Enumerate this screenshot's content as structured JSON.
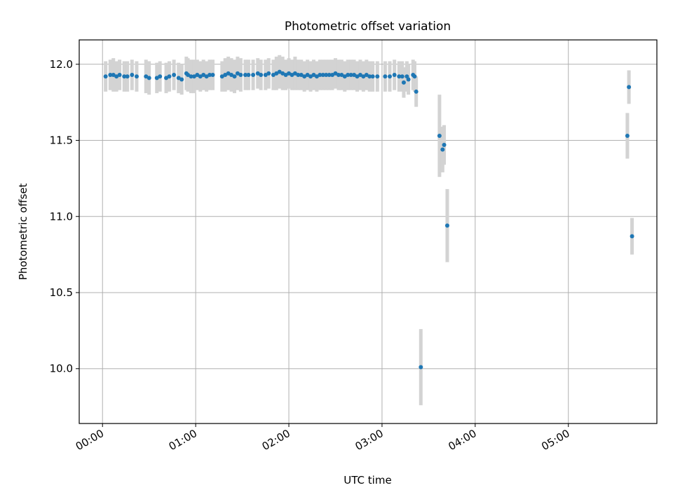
{
  "chart_data": {
    "type": "scatter",
    "title": "Photometric offset variation",
    "xlabel": "UTC time",
    "ylabel": "Photometric offset",
    "xlim": [
      "-00:15",
      "05:57"
    ],
    "ylim": [
      9.64,
      12.16
    ],
    "xticks": [
      "00:00",
      "01:00",
      "02:00",
      "03:00",
      "04:00",
      "05:00"
    ],
    "yticks": [
      10.0,
      10.5,
      11.0,
      11.5,
      12.0
    ],
    "grid": true,
    "colors": {
      "marker": "#1f77b4",
      "errorbar": "#d3d3d3",
      "grid": "#b0b0b0"
    },
    "series": [
      {
        "x_format": "HH:MM",
        "points": [
          {
            "x": "00:02",
            "y": 11.92,
            "err": 0.1
          },
          {
            "x": "00:05",
            "y": 11.93,
            "err": 0.1
          },
          {
            "x": "00:07",
            "y": 11.93,
            "err": 0.11
          },
          {
            "x": "00:09",
            "y": 11.92,
            "err": 0.1
          },
          {
            "x": "00:11",
            "y": 11.93,
            "err": 0.1
          },
          {
            "x": "00:14",
            "y": 11.92,
            "err": 0.1
          },
          {
            "x": "00:16",
            "y": 11.92,
            "err": 0.1
          },
          {
            "x": "00:19",
            "y": 11.93,
            "err": 0.1
          },
          {
            "x": "00:22",
            "y": 11.92,
            "err": 0.1
          },
          {
            "x": "00:28",
            "y": 11.92,
            "err": 0.11
          },
          {
            "x": "00:30",
            "y": 11.91,
            "err": 0.11
          },
          {
            "x": "00:35",
            "y": 11.91,
            "err": 0.1
          },
          {
            "x": "00:37",
            "y": 11.92,
            "err": 0.1
          },
          {
            "x": "00:41",
            "y": 11.91,
            "err": 0.1
          },
          {
            "x": "00:43",
            "y": 11.92,
            "err": 0.1
          },
          {
            "x": "00:46",
            "y": 11.93,
            "err": 0.1
          },
          {
            "x": "00:49",
            "y": 11.91,
            "err": 0.1
          },
          {
            "x": "00:51",
            "y": 11.9,
            "err": 0.1
          },
          {
            "x": "00:54",
            "y": 11.94,
            "err": 0.11
          },
          {
            "x": "00:55",
            "y": 11.93,
            "err": 0.11
          },
          {
            "x": "00:57",
            "y": 11.92,
            "err": 0.11
          },
          {
            "x": "00:59",
            "y": 11.92,
            "err": 0.11
          },
          {
            "x": "01:01",
            "y": 11.93,
            "err": 0.1
          },
          {
            "x": "01:03",
            "y": 11.92,
            "err": 0.1
          },
          {
            "x": "01:05",
            "y": 11.93,
            "err": 0.1
          },
          {
            "x": "01:07",
            "y": 11.92,
            "err": 0.1
          },
          {
            "x": "01:09",
            "y": 11.93,
            "err": 0.1
          },
          {
            "x": "01:11",
            "y": 11.93,
            "err": 0.1
          },
          {
            "x": "01:17",
            "y": 11.92,
            "err": 0.1
          },
          {
            "x": "01:19",
            "y": 11.93,
            "err": 0.11
          },
          {
            "x": "01:21",
            "y": 11.94,
            "err": 0.11
          },
          {
            "x": "01:23",
            "y": 11.93,
            "err": 0.11
          },
          {
            "x": "01:25",
            "y": 11.92,
            "err": 0.11
          },
          {
            "x": "01:27",
            "y": 11.94,
            "err": 0.11
          },
          {
            "x": "01:29",
            "y": 11.93,
            "err": 0.11
          },
          {
            "x": "01:32",
            "y": 11.93,
            "err": 0.1
          },
          {
            "x": "01:34",
            "y": 11.93,
            "err": 0.1
          },
          {
            "x": "01:37",
            "y": 11.93,
            "err": 0.1
          },
          {
            "x": "01:40",
            "y": 11.94,
            "err": 0.1
          },
          {
            "x": "01:42",
            "y": 11.93,
            "err": 0.1
          },
          {
            "x": "01:45",
            "y": 11.93,
            "err": 0.1
          },
          {
            "x": "01:47",
            "y": 11.94,
            "err": 0.1
          },
          {
            "x": "01:50",
            "y": 11.93,
            "err": 0.1
          },
          {
            "x": "01:52",
            "y": 11.94,
            "err": 0.11
          },
          {
            "x": "01:54",
            "y": 11.95,
            "err": 0.11
          },
          {
            "x": "01:56",
            "y": 11.94,
            "err": 0.11
          },
          {
            "x": "01:58",
            "y": 11.93,
            "err": 0.1
          },
          {
            "x": "02:00",
            "y": 11.94,
            "err": 0.1
          },
          {
            "x": "02:02",
            "y": 11.93,
            "err": 0.1
          },
          {
            "x": "02:04",
            "y": 11.94,
            "err": 0.11
          },
          {
            "x": "02:06",
            "y": 11.93,
            "err": 0.1
          },
          {
            "x": "02:08",
            "y": 11.93,
            "err": 0.1
          },
          {
            "x": "02:10",
            "y": 11.92,
            "err": 0.1
          },
          {
            "x": "02:12",
            "y": 11.93,
            "err": 0.1
          },
          {
            "x": "02:14",
            "y": 11.92,
            "err": 0.1
          },
          {
            "x": "02:16",
            "y": 11.93,
            "err": 0.1
          },
          {
            "x": "02:18",
            "y": 11.92,
            "err": 0.1
          },
          {
            "x": "02:20",
            "y": 11.93,
            "err": 0.1
          },
          {
            "x": "02:22",
            "y": 11.93,
            "err": 0.1
          },
          {
            "x": "02:24",
            "y": 11.93,
            "err": 0.1
          },
          {
            "x": "02:26",
            "y": 11.93,
            "err": 0.1
          },
          {
            "x": "02:28",
            "y": 11.93,
            "err": 0.1
          },
          {
            "x": "02:30",
            "y": 11.94,
            "err": 0.1
          },
          {
            "x": "02:32",
            "y": 11.93,
            "err": 0.1
          },
          {
            "x": "02:34",
            "y": 11.93,
            "err": 0.1
          },
          {
            "x": "02:36",
            "y": 11.92,
            "err": 0.1
          },
          {
            "x": "02:38",
            "y": 11.93,
            "err": 0.1
          },
          {
            "x": "02:40",
            "y": 11.93,
            "err": 0.1
          },
          {
            "x": "02:42",
            "y": 11.93,
            "err": 0.1
          },
          {
            "x": "02:44",
            "y": 11.92,
            "err": 0.1
          },
          {
            "x": "02:46",
            "y": 11.93,
            "err": 0.1
          },
          {
            "x": "02:48",
            "y": 11.92,
            "err": 0.1
          },
          {
            "x": "02:50",
            "y": 11.93,
            "err": 0.1
          },
          {
            "x": "02:52",
            "y": 11.92,
            "err": 0.1
          },
          {
            "x": "02:54",
            "y": 11.92,
            "err": 0.1
          },
          {
            "x": "02:57",
            "y": 11.92,
            "err": 0.1
          },
          {
            "x": "03:02",
            "y": 11.92,
            "err": 0.1
          },
          {
            "x": "03:05",
            "y": 11.92,
            "err": 0.1
          },
          {
            "x": "03:08",
            "y": 11.93,
            "err": 0.1
          },
          {
            "x": "03:11",
            "y": 11.92,
            "err": 0.1
          },
          {
            "x": "03:13",
            "y": 11.92,
            "err": 0.1
          },
          {
            "x": "03:14",
            "y": 11.88,
            "err": 0.1
          },
          {
            "x": "03:16",
            "y": 11.92,
            "err": 0.1
          },
          {
            "x": "03:17",
            "y": 11.9,
            "err": 0.1
          },
          {
            "x": "03:20",
            "y": 11.93,
            "err": 0.1
          },
          {
            "x": "03:21",
            "y": 11.92,
            "err": 0.1
          },
          {
            "x": "03:22",
            "y": 11.82,
            "err": 0.1
          },
          {
            "x": "03:25",
            "y": 10.01,
            "err": 0.25
          },
          {
            "x": "03:37",
            "y": 11.53,
            "err": 0.27
          },
          {
            "x": "03:39",
            "y": 11.44,
            "err": 0.15
          },
          {
            "x": "03:40",
            "y": 11.47,
            "err": 0.13
          },
          {
            "x": "03:42",
            "y": 10.94,
            "err": 0.24
          },
          {
            "x": "05:38",
            "y": 11.53,
            "err": 0.15
          },
          {
            "x": "05:39",
            "y": 11.85,
            "err": 0.11
          },
          {
            "x": "05:41",
            "y": 10.87,
            "err": 0.12
          }
        ]
      }
    ]
  }
}
